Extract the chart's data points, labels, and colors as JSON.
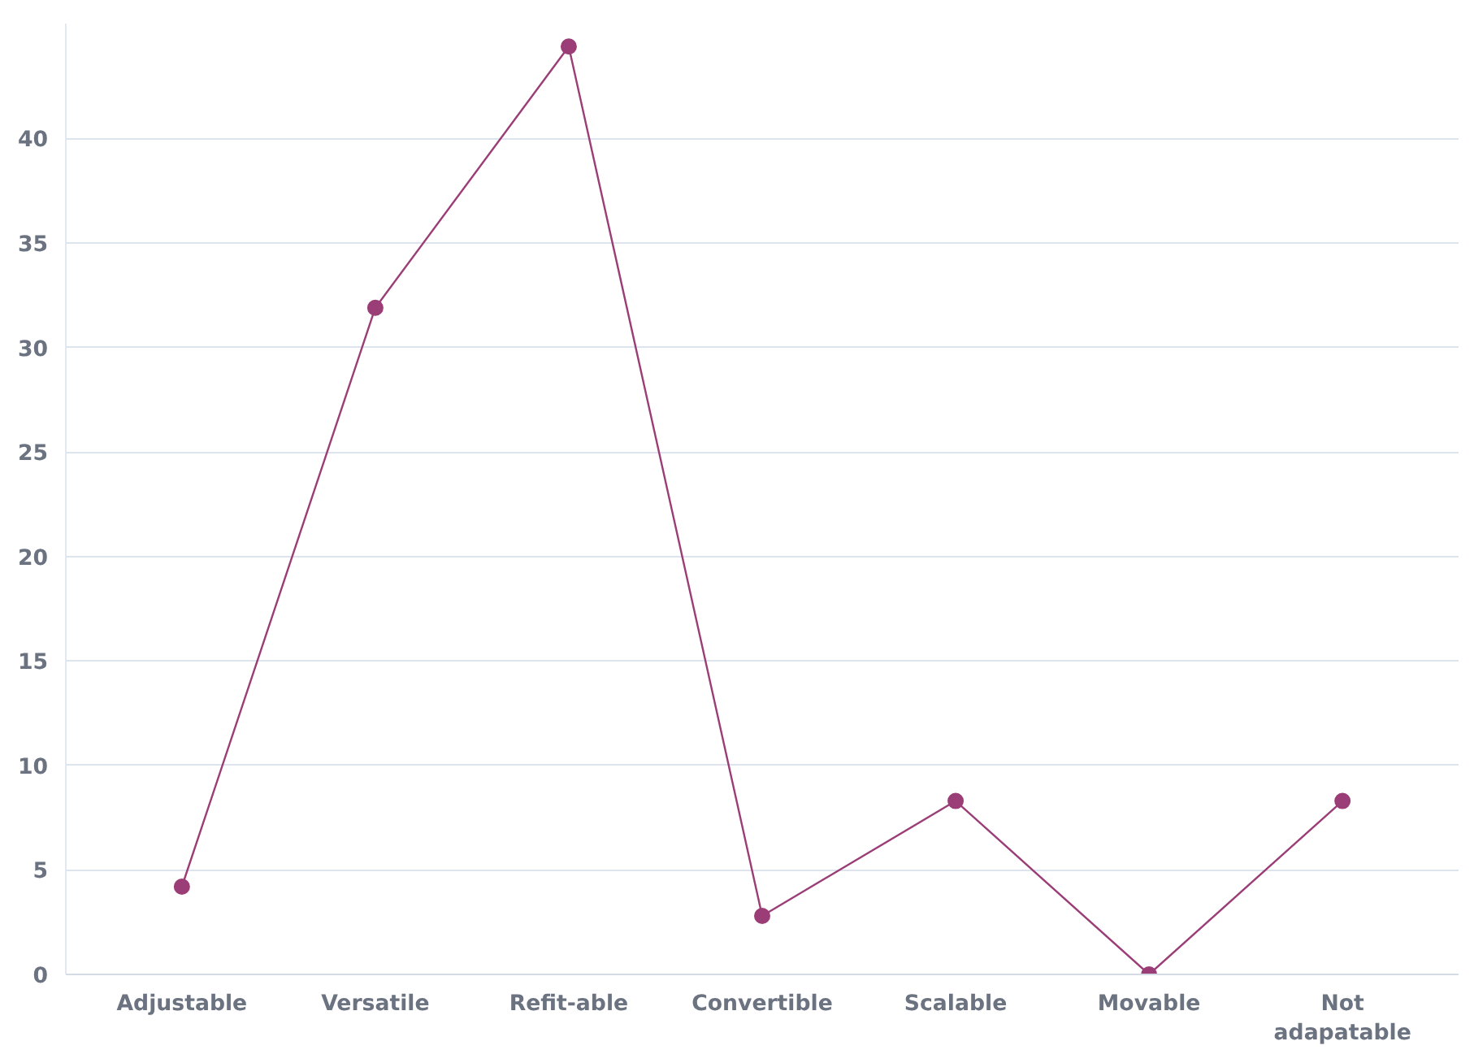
{
  "chart_data": {
    "type": "line",
    "categories": [
      "Adjustable",
      "Versatile",
      "Refit-able",
      "Convertible",
      "Scalable",
      "Movable",
      "Not adapatable"
    ],
    "series": [
      {
        "color": "#9b3d76",
        "values": [
          4.2,
          31.9,
          44.4,
          2.8,
          8.3,
          0,
          8.3
        ]
      }
    ],
    "ylim": [
      0,
      45.5
    ],
    "yticks": [
      0,
      5,
      10,
      15,
      20,
      25,
      30,
      35,
      40
    ],
    "grid": "y",
    "marker": "circle",
    "line_style": "solid"
  }
}
